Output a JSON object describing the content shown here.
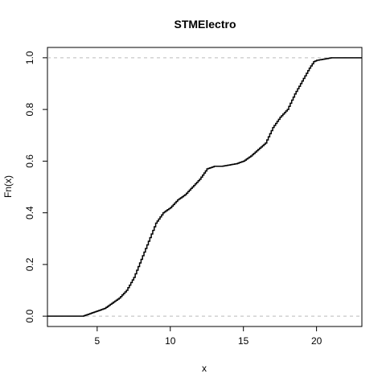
{
  "chart_data": {
    "type": "line",
    "title": "STMElectro",
    "xlabel": "x",
    "ylabel": "Fn(x)",
    "xlim": [
      1.6,
      23.1
    ],
    "ylim": [
      -0.04,
      1.04
    ],
    "x_ticks": [
      5,
      10,
      15,
      20
    ],
    "y_ticks": [
      0.0,
      0.2,
      0.4,
      0.6,
      0.8,
      1.0
    ],
    "x_tick_labels": [
      "5",
      "10",
      "15",
      "20"
    ],
    "y_tick_labels": [
      "0.0",
      "0.2",
      "0.4",
      "0.6",
      "0.8",
      "1.0"
    ],
    "reference_lines": [
      0,
      1
    ],
    "series": [
      {
        "x": [
          1.6,
          4.0,
          4.5,
          5.0,
          5.5,
          6.0,
          6.5,
          7.0,
          7.5,
          8.0,
          8.5,
          9.0,
          9.5,
          10.0,
          10.5,
          11.0,
          11.5,
          12.0,
          12.5,
          13.0,
          13.5,
          14.0,
          14.5,
          15.0,
          15.5,
          16.0,
          16.5,
          17.0,
          17.5,
          18.0,
          18.5,
          19.0,
          19.5,
          19.8,
          20.0,
          20.5,
          21.0,
          23.1
        ],
        "y": [
          0.0,
          0.0,
          0.01,
          0.02,
          0.03,
          0.05,
          0.07,
          0.1,
          0.15,
          0.22,
          0.29,
          0.36,
          0.4,
          0.42,
          0.45,
          0.47,
          0.5,
          0.53,
          0.57,
          0.58,
          0.58,
          0.585,
          0.59,
          0.6,
          0.62,
          0.645,
          0.67,
          0.73,
          0.77,
          0.8,
          0.86,
          0.91,
          0.96,
          0.985,
          0.99,
          0.995,
          1.0,
          1.0
        ]
      }
    ]
  }
}
